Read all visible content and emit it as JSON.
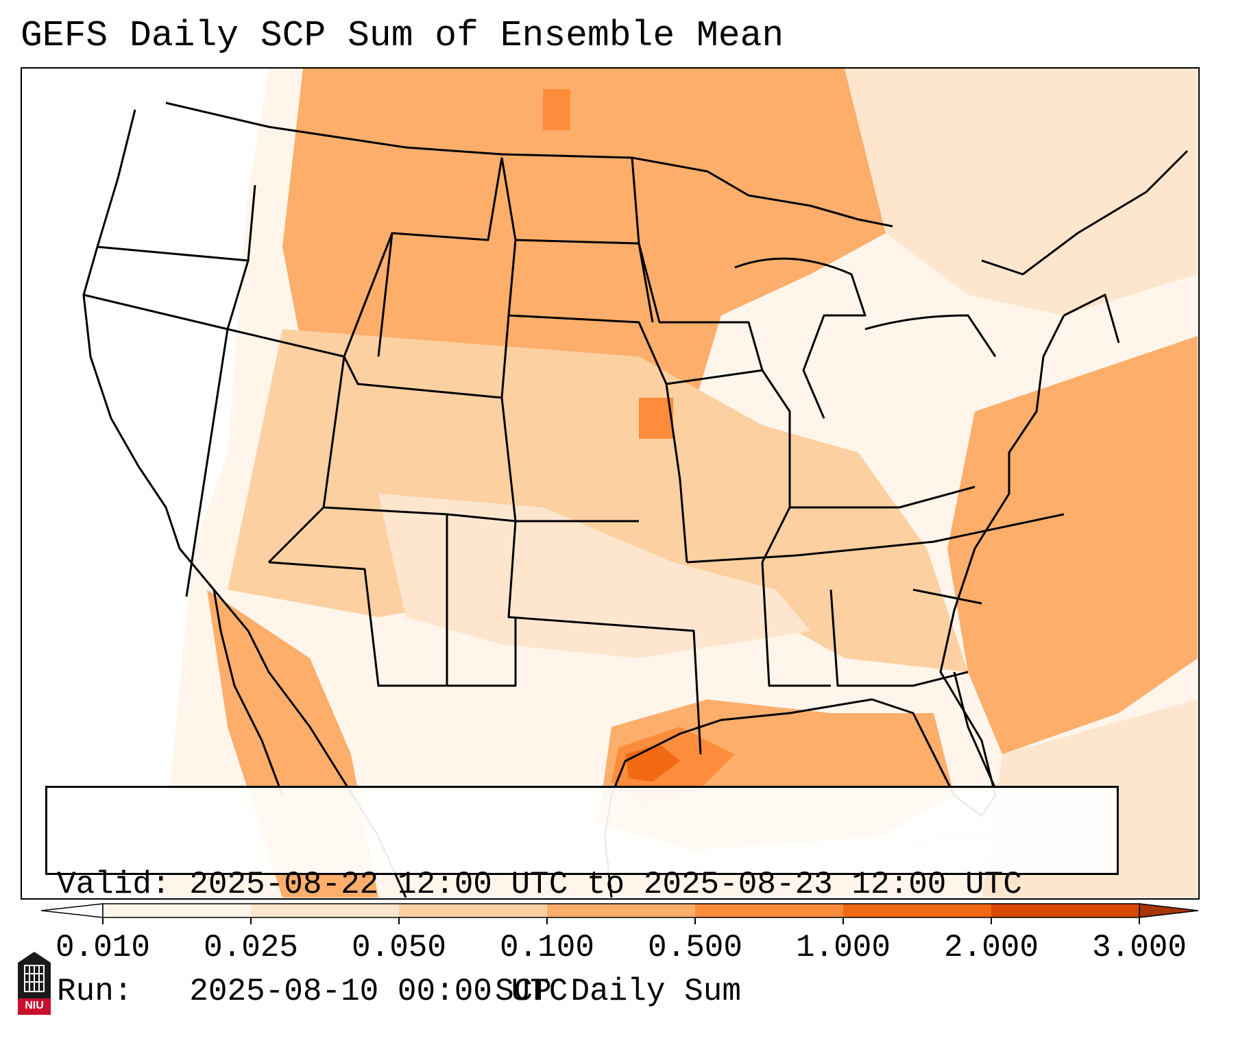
{
  "title": "GEFS Daily SCP Sum of Ensemble Mean",
  "info": {
    "valid_line": "Valid: 2025-08-22 12:00 UTC to 2025-08-23 12:00 UTC",
    "run_line": "Run:   2025-08-10 00:00 UTC"
  },
  "colorbar": {
    "label": "SCP Daily Sum",
    "ticks": [
      "0.010",
      "0.025",
      "0.050",
      "0.100",
      "0.500",
      "1.000",
      "2.000",
      "3.000"
    ],
    "colors": [
      "#fff5eb",
      "#fee6ce",
      "#fdd0a2",
      "#fdae6b",
      "#fd8d3c",
      "#f16913",
      "#d94801"
    ],
    "extend": "both"
  },
  "logo": {
    "text": "NIU"
  }
}
